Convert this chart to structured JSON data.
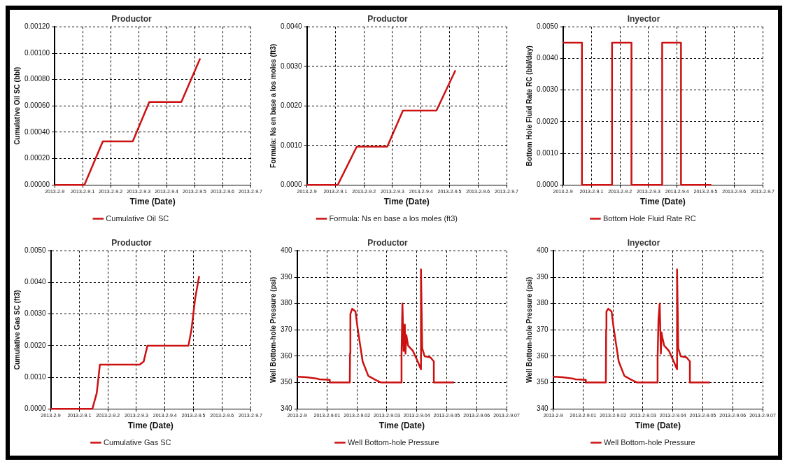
{
  "chart_data": [
    {
      "type": "line",
      "title": "Productor",
      "xlabel": "Time (Date)",
      "ylabel": "Cumulative Oil SC (bbl)",
      "legend": "bottom",
      "grid": true,
      "x": [
        "2013-02-09T00:00",
        "2013-02-09T02:33",
        "2013-02-09T04:08",
        "2013-02-09T06:42",
        "2013-02-09T08:07",
        "2013-02-09T10:52",
        "2013-02-09T12:29"
      ],
      "series": [
        {
          "name": "Cumulative Oil SC",
          "color": "#cc1111",
          "values": [
            0,
            0,
            0.00033,
            0.00033,
            0.00063,
            0.00063,
            0.00096
          ]
        }
      ],
      "xlim": [
        "2013-02-09T00:00",
        "2013-02-09T16:48"
      ],
      "xticks": [
        {
          "value": "2013-02-09T00:00",
          "label": "2013-2-9"
        },
        {
          "value": "2013-02-09T02:24",
          "label": "2013-2-9.1"
        },
        {
          "value": "2013-02-09T04:48",
          "label": "2013-2-9.2"
        },
        {
          "value": "2013-02-09T07:12",
          "label": "2013-2-9.3"
        },
        {
          "value": "2013-02-09T09:36",
          "label": "2013-2-9.4"
        },
        {
          "value": "2013-02-09T12:00",
          "label": "2013-2-9.5"
        },
        {
          "value": "2013-02-09T14:24",
          "label": "2013-2-9.6"
        },
        {
          "value": "2013-02-09T16:48",
          "label": "2013-2-9.7"
        }
      ],
      "ylim": [
        0,
        0.0012
      ],
      "yticks": [
        {
          "value": 0,
          "label": "0.00000"
        },
        {
          "value": 0.0002,
          "label": "0.00020"
        },
        {
          "value": 0.0004,
          "label": "0.00040"
        },
        {
          "value": 0.0006,
          "label": "0.00060"
        },
        {
          "value": 0.0008,
          "label": "0.00080"
        },
        {
          "value": 0.001,
          "label": "0.00100"
        },
        {
          "value": 0.0012,
          "label": "0.00120"
        }
      ]
    },
    {
      "type": "line",
      "title": "Productor",
      "xlabel": "Time (Date)",
      "ylabel": "Formula: Ns en base a los moles (ft3)",
      "legend": "bottom",
      "grid": true,
      "x": [
        "2013-02-09T00:00",
        "2013-02-09T02:36",
        "2013-02-09T04:12",
        "2013-02-09T06:46",
        "2013-02-09T08:05",
        "2013-02-09T10:54",
        "2013-02-09T12:30"
      ],
      "series": [
        {
          "name": "Formula: Ns en base a los moles (ft3)",
          "color": "#cc1111",
          "values": [
            0,
            0,
            0.00097,
            0.00097,
            0.00188,
            0.00188,
            0.0029
          ]
        }
      ],
      "xlim": [
        "2013-02-09T00:00",
        "2013-02-09T16:48"
      ],
      "xticks": [
        {
          "value": "2013-02-09T00:00",
          "label": "2013-2-9"
        },
        {
          "value": "2013-02-09T02:24",
          "label": "2013-2-9.1"
        },
        {
          "value": "2013-02-09T04:48",
          "label": "2013-2-9.2"
        },
        {
          "value": "2013-02-09T07:12",
          "label": "2013-2-9.3"
        },
        {
          "value": "2013-02-09T09:36",
          "label": "2013-2-9.4"
        },
        {
          "value": "2013-02-09T12:00",
          "label": "2013-2-9.5"
        },
        {
          "value": "2013-02-09T14:24",
          "label": "2013-2-9.6"
        },
        {
          "value": "2013-02-09T16:48",
          "label": "2013-2-9.7"
        }
      ],
      "ylim": [
        0,
        0.004
      ],
      "yticks": [
        {
          "value": 0,
          "label": "0.0000"
        },
        {
          "value": 0.001,
          "label": "0.0010"
        },
        {
          "value": 0.002,
          "label": "0.0020"
        },
        {
          "value": 0.003,
          "label": "0.0030"
        },
        {
          "value": 0.004,
          "label": "0.0040"
        }
      ]
    },
    {
      "type": "line",
      "title": "Inyector",
      "xlabel": "Time (Date)",
      "ylabel": "Bottom Hole Fluid Rate RC (bbl/day)",
      "legend": "bottom",
      "grid": true,
      "x": [
        "2013-02-09T00:00",
        "2013-02-09T01:36",
        "2013-02-09T01:36",
        "2013-02-09T04:08",
        "2013-02-09T04:08",
        "2013-02-09T05:46",
        "2013-02-09T05:46",
        "2013-02-09T08:21",
        "2013-02-09T08:21",
        "2013-02-09T09:56",
        "2013-02-09T09:56",
        "2013-02-09T12:29"
      ],
      "series": [
        {
          "name": "Bottom Hole Fluid Rate RC",
          "color": "#cc1111",
          "values": [
            0.0045,
            0.0045,
            0,
            0,
            0.0045,
            0.0045,
            0,
            0,
            0.0045,
            0.0045,
            0,
            0
          ]
        }
      ],
      "xlim": [
        "2013-02-09T00:00",
        "2013-02-09T16:48"
      ],
      "xticks": [
        {
          "value": "2013-02-09T00:00",
          "label": "2013-2-9"
        },
        {
          "value": "2013-02-09T02:24",
          "label": "2013-2-9.1"
        },
        {
          "value": "2013-02-09T04:48",
          "label": "2013-2-9.2"
        },
        {
          "value": "2013-02-09T07:12",
          "label": "2013-2-9.3"
        },
        {
          "value": "2013-02-09T09:36",
          "label": "2013-2-9.4"
        },
        {
          "value": "2013-02-09T12:00",
          "label": "2013-2-9.5"
        },
        {
          "value": "2013-02-09T14:24",
          "label": "2013-2-9.6"
        },
        {
          "value": "2013-02-09T16:48",
          "label": "2013-2-9.7"
        }
      ],
      "ylim": [
        0,
        0.005
      ],
      "yticks": [
        {
          "value": 0,
          "label": "0.0000"
        },
        {
          "value": 0.001,
          "label": "0.0010"
        },
        {
          "value": 0.002,
          "label": "0.0020"
        },
        {
          "value": 0.003,
          "label": "0.0030"
        },
        {
          "value": 0.004,
          "label": "0.0040"
        },
        {
          "value": 0.005,
          "label": "0.0050"
        }
      ]
    },
    {
      "type": "line",
      "title": "Productor",
      "xlabel": "Time (Date)",
      "ylabel": "Cumulative Gas SC (ft3)",
      "legend": "bottom",
      "grid": true,
      "x": [
        "2013-02-09T00:00",
        "2013-02-09T03:30",
        "2013-02-09T03:52",
        "2013-02-09T04:08",
        "2013-02-09T07:29",
        "2013-02-09T07:49",
        "2013-02-09T08:08",
        "2013-02-09T11:35",
        "2013-02-09T11:50",
        "2013-02-09T12:09",
        "2013-02-09T12:29"
      ],
      "series": [
        {
          "name": "Cumulative Gas SC",
          "color": "#cc1111",
          "values": [
            0,
            0,
            0.0005,
            0.0014,
            0.0014,
            0.0015,
            0.002,
            0.002,
            0.0025,
            0.0035,
            0.0042
          ]
        }
      ],
      "xlim": [
        "2013-02-09T00:00",
        "2013-02-09T16:48"
      ],
      "xticks": [
        {
          "value": "2013-02-09T00:00",
          "label": "2013-2-9"
        },
        {
          "value": "2013-02-09T02:24",
          "label": "2013-2-9.1"
        },
        {
          "value": "2013-02-09T04:48",
          "label": "2013-2-9.2"
        },
        {
          "value": "2013-02-09T07:12",
          "label": "2013-2-9.3"
        },
        {
          "value": "2013-02-09T09:36",
          "label": "2013-2-9.4"
        },
        {
          "value": "2013-02-09T12:00",
          "label": "2013-2-9.5"
        },
        {
          "value": "2013-02-09T14:24",
          "label": "2013-2-9.6"
        },
        {
          "value": "2013-02-09T16:48",
          "label": "2013-2-9.7"
        }
      ],
      "ylim": [
        0,
        0.005
      ],
      "yticks": [
        {
          "value": 0,
          "label": "0.0000"
        },
        {
          "value": 0.001,
          "label": "0.0010"
        },
        {
          "value": 0.002,
          "label": "0.0020"
        },
        {
          "value": 0.003,
          "label": "0.0030"
        },
        {
          "value": 0.004,
          "label": "0.0040"
        },
        {
          "value": 0.005,
          "label": "0.0050"
        }
      ]
    },
    {
      "type": "line",
      "title": "Productor",
      "xlabel": "Time (Date)",
      "ylabel": "Well Bottom-hole Pressure (psi)",
      "legend": "bottom",
      "grid": true,
      "x": [
        "2013-02-09T00:00:00",
        "2013-02-09T00:04:28",
        "2013-02-09T00:09:30",
        "2013-02-09T00:10:39",
        "2013-02-09T00:15:42",
        "2013-02-09T00:15:42",
        "2013-02-09T00:25:21",
        "2013-02-09T00:25:29",
        "2013-02-09T00:25:38",
        "2013-02-09T00:26:30",
        "2013-02-09T00:28:05",
        "2013-02-09T00:29:14",
        "2013-02-09T00:31:32",
        "2013-02-09T00:34:16",
        "2013-02-09T00:37:44",
        "2013-02-09T00:40:28",
        "2013-02-09T00:50:07",
        "2013-02-09T00:50:15",
        "2013-02-09T00:50:41",
        "2013-02-09T00:51:16",
        "2013-02-09T00:51:50",
        "2013-02-09T00:52:08",
        "2013-02-09T00:52:34",
        "2013-02-09T00:53:25",
        "2013-02-09T00:55:44",
        "2013-02-09T00:58:02",
        "2013-02-09T00:59:37",
        "2013-02-09T00:59:37",
        "2013-02-09T01:00:12",
        "2013-02-09T01:01:21",
        "2013-02-09T01:04:13",
        "2013-02-09T01:05:48",
        "2013-02-09T01:05:48",
        "2013-02-09T01:15:27"
      ],
      "series": [
        {
          "name": "Well Bottom-hole Pressure",
          "color": "#cc1111",
          "values": [
            352.2,
            352,
            351.5,
            351.2,
            351,
            350,
            350,
            361,
            376,
            378,
            377,
            370,
            358,
            352.5,
            351,
            350,
            350,
            360,
            380,
            362,
            372,
            361,
            368,
            364,
            362,
            358,
            355,
            393,
            363,
            360,
            359.5,
            358,
            350,
            350
          ]
        }
      ],
      "xlim": [
        "2013-02-09T00:00:00",
        "2013-02-09T01:40:48"
      ],
      "xticks": [
        {
          "value": "2013-02-09T00:00:00",
          "label": "2013-2-9"
        },
        {
          "value": "2013-02-09T00:14:24",
          "label": "2013-2-9.01"
        },
        {
          "value": "2013-02-09T00:28:48",
          "label": "2013-2-9.02"
        },
        {
          "value": "2013-02-09T00:43:12",
          "label": "2013-2-9.03"
        },
        {
          "value": "2013-02-09T00:57:36",
          "label": "2013-2-9.04"
        },
        {
          "value": "2013-02-09T01:12:00",
          "label": "2013-2-9.05"
        },
        {
          "value": "2013-02-09T01:26:24",
          "label": "2013-2-9.06"
        },
        {
          "value": "2013-02-09T01:40:48",
          "label": "2013-2-9.07"
        }
      ],
      "ylim": [
        340,
        400
      ],
      "yticks": [
        340,
        350,
        360,
        370,
        380,
        390,
        400
      ]
    },
    {
      "type": "line",
      "title": "Inyector",
      "xlabel": "Time (Date)",
      "ylabel": "Well Bottom-hole Pressure (psi)",
      "legend": "bottom",
      "grid": true,
      "x": [
        "2013-02-09T00:00:00",
        "2013-02-09T00:04:28",
        "2013-02-09T00:09:30",
        "2013-02-09T00:10:39",
        "2013-02-09T00:15:42",
        "2013-02-09T00:15:42",
        "2013-02-09T00:25:21",
        "2013-02-09T00:25:29",
        "2013-02-09T00:25:38",
        "2013-02-09T00:26:30",
        "2013-02-09T00:28:05",
        "2013-02-09T00:29:14",
        "2013-02-09T00:31:32",
        "2013-02-09T00:34:16",
        "2013-02-09T00:37:44",
        "2013-02-09T00:40:28",
        "2013-02-09T00:50:07",
        "2013-02-09T00:50:15",
        "2013-02-09T00:50:41",
        "2013-02-09T00:51:16",
        "2013-02-09T00:51:50",
        "2013-02-09T00:52:08",
        "2013-02-09T00:52:34",
        "2013-02-09T00:53:25",
        "2013-02-09T00:55:44",
        "2013-02-09T00:58:02",
        "2013-02-09T00:59:37",
        "2013-02-09T00:59:37",
        "2013-02-09T01:00:12",
        "2013-02-09T01:01:21",
        "2013-02-09T01:04:13",
        "2013-02-09T01:05:48",
        "2013-02-09T01:05:48",
        "2013-02-09T01:15:27"
      ],
      "series": [
        {
          "name": "Well Bottom-hole Pressure",
          "color": "#cc1111",
          "values": [
            352.2,
            352,
            351.5,
            351.2,
            351,
            350,
            350,
            370,
            377,
            378,
            377,
            370,
            358,
            352.5,
            351,
            350,
            350,
            359,
            374,
            380,
            361,
            369,
            367,
            364,
            362,
            358,
            355,
            393,
            363,
            360,
            359.5,
            358,
            350,
            350
          ]
        }
      ],
      "xlim": [
        "2013-02-09T00:00:00",
        "2013-02-09T01:40:48"
      ],
      "xticks": [
        {
          "value": "2013-02-09T00:00:00",
          "label": "2013-2-9"
        },
        {
          "value": "2013-02-09T00:14:24",
          "label": "2013-2-9.01"
        },
        {
          "value": "2013-02-09T00:28:48",
          "label": "2013-2-9.02"
        },
        {
          "value": "2013-02-09T00:43:12",
          "label": "2013-2-9.03"
        },
        {
          "value": "2013-02-09T00:57:36",
          "label": "2013-2-9.04"
        },
        {
          "value": "2013-02-09T01:12:00",
          "label": "2013-2-9.05"
        },
        {
          "value": "2013-02-09T01:26:24",
          "label": "2013-2-9.06"
        },
        {
          "value": "2013-02-09T01:40:48",
          "label": "2013-2-9.07"
        }
      ],
      "ylim": [
        340,
        400
      ],
      "yticks": [
        340,
        350,
        360,
        370,
        380,
        390,
        400
      ]
    }
  ]
}
